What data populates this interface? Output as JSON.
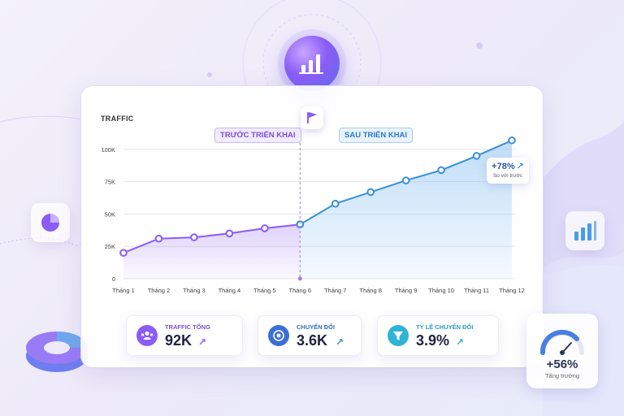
{
  "chart_data": {
    "type": "line",
    "title": "TRAFFIC",
    "categories": [
      "Tháng 1",
      "Tháng 2",
      "Tháng 3",
      "Tháng 4",
      "Tháng 5",
      "Tháng 6",
      "Tháng 7",
      "Tháng 8",
      "Tháng 9",
      "Tháng 10",
      "Tháng 11",
      "Tháng 12"
    ],
    "series": [
      {
        "values": [
          20,
          31,
          32,
          35,
          39,
          42,
          null,
          null,
          null,
          null,
          null,
          null
        ],
        "color": "#8b5cf6"
      },
      {
        "values": [
          null,
          null,
          null,
          null,
          null,
          42,
          58,
          67,
          76,
          84,
          95,
          107
        ],
        "color": "#3b8fd6"
      }
    ],
    "y_ticks": [
      "0",
      "25K",
      "50K",
      "75K",
      "100K"
    ],
    "ylim": [
      0,
      110
    ],
    "annotations": {
      "before_label": "TRƯỚC TRIỂN KHAI",
      "after_label": "SAU TRIỂN KHAI",
      "divider_category": "Tháng 6",
      "growth_value": "+78%",
      "growth_sub": "So với trước"
    },
    "grid": true,
    "legend": "none"
  },
  "kpis": [
    {
      "label": "TRAFFIC TỔNG",
      "value": "92K",
      "label_color": "#7a4fd6",
      "icon": "users-icon"
    },
    {
      "label": "CHUYỂN ĐỔI",
      "value": "3.6K",
      "label_color": "#2f6fc4",
      "icon": "target-icon"
    },
    {
      "label": "TỶ LỆ CHUYỂN ĐỔI",
      "value": "3.9%",
      "label_color": "#2a9bc4",
      "icon": "funnel-icon"
    }
  ],
  "gauge": {
    "value": "+56%",
    "sub": "Tăng trưởng"
  },
  "colors": {
    "accent_purple": "#8b5cf6",
    "accent_blue": "#3b8fd6"
  }
}
